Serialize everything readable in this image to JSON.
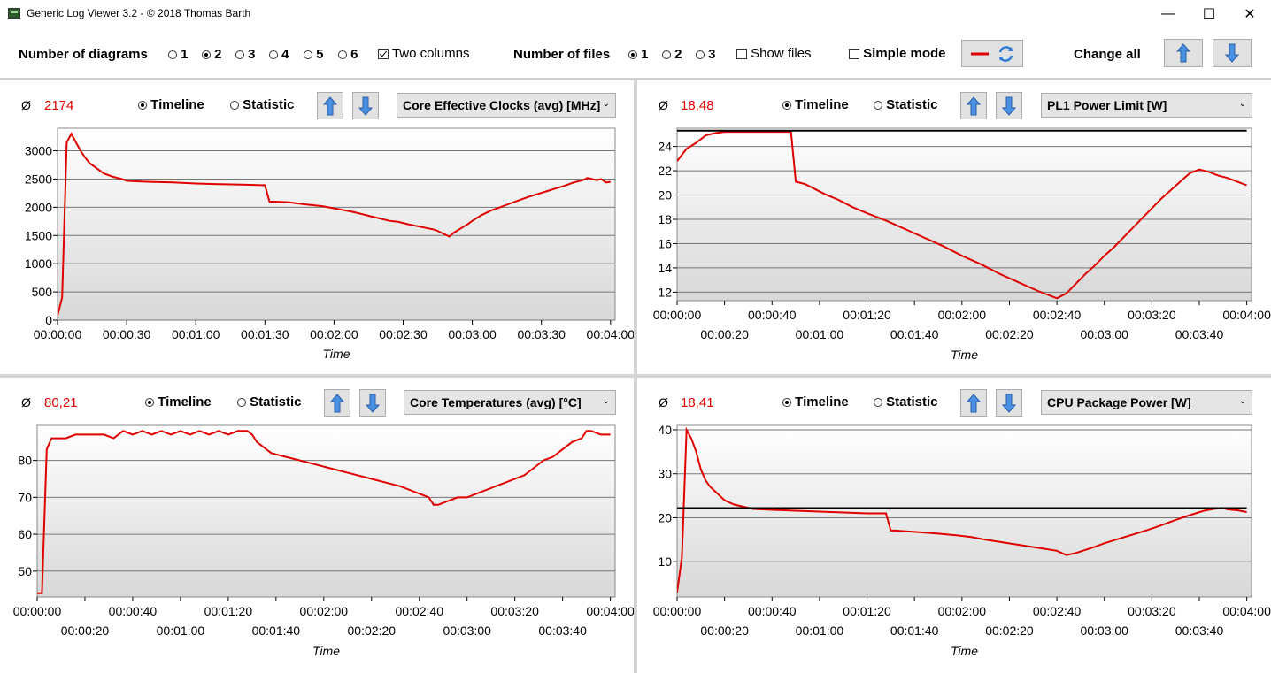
{
  "window": {
    "title": "Generic Log Viewer 3.2 - © 2018 Thomas Barth",
    "minimize_glyph": "—",
    "maximize_glyph": "☐",
    "close_glyph": "✕"
  },
  "toolbar": {
    "diagrams_label": "Number of diagrams",
    "diagram_options": [
      "1",
      "2",
      "3",
      "4",
      "5",
      "6"
    ],
    "diagram_selected": "2",
    "two_columns_label": "Two columns",
    "two_columns_checked": true,
    "files_label": "Number of files",
    "file_options": [
      "1",
      "2",
      "3"
    ],
    "file_selected": "1",
    "show_files_label": "Show files",
    "show_files_checked": false,
    "simple_mode_label": "Simple mode",
    "simple_mode_checked": false,
    "change_all_label": "Change all",
    "line_color": "#e00000",
    "refresh_icon": "refresh-icon",
    "up_icon": "arrow-up-icon",
    "down_icon": "arrow-down-icon"
  },
  "panels": [
    {
      "avg_symbol": "Ø",
      "avg_value": "2174",
      "timeline_label": "Timeline",
      "statistic_label": "Statistic",
      "mode": "Timeline",
      "sensor": "Core Effective Clocks (avg) [MHz]",
      "x_axis_title": "Time",
      "y_ticks": [
        "0",
        "500",
        "1000",
        "1500",
        "2000",
        "2500",
        "3000"
      ],
      "x_ticks_row1": [
        "00:00:00",
        "00:00:30",
        "00:01:00",
        "00:01:30",
        "00:02:00",
        "00:02:30",
        "00:03:00",
        "00:03:30",
        "00:04:00"
      ],
      "x_ticks_row2": []
    },
    {
      "avg_symbol": "Ø",
      "avg_value": "18,48",
      "timeline_label": "Timeline",
      "statistic_label": "Statistic",
      "mode": "Timeline",
      "sensor": "PL1 Power Limit [W]",
      "x_axis_title": "Time",
      "y_ticks": [
        "12",
        "14",
        "16",
        "18",
        "20",
        "22",
        "24"
      ],
      "x_ticks_row1": [
        "00:00:00",
        "00:00:40",
        "00:01:20",
        "00:02:00",
        "00:02:40",
        "00:03:20",
        "00:04:00"
      ],
      "x_ticks_row2": [
        "00:00:20",
        "00:01:00",
        "00:01:40",
        "00:02:20",
        "00:03:00",
        "00:03:40"
      ]
    },
    {
      "avg_symbol": "Ø",
      "avg_value": "80,21",
      "timeline_label": "Timeline",
      "statistic_label": "Statistic",
      "mode": "Timeline",
      "sensor": "Core Temperatures (avg) [°C]",
      "x_axis_title": "Time",
      "y_ticks": [
        "50",
        "60",
        "70",
        "80"
      ],
      "x_ticks_row1": [
        "00:00:00",
        "00:00:40",
        "00:01:20",
        "00:02:00",
        "00:02:40",
        "00:03:20",
        "00:04:00"
      ],
      "x_ticks_row2": [
        "00:00:20",
        "00:01:00",
        "00:01:40",
        "00:02:20",
        "00:03:00",
        "00:03:40"
      ]
    },
    {
      "avg_symbol": "Ø",
      "avg_value": "18,41",
      "timeline_label": "Timeline",
      "statistic_label": "Statistic",
      "mode": "Timeline",
      "sensor": "CPU Package Power [W]",
      "x_axis_title": "Time",
      "y_ticks": [
        "10",
        "20",
        "30",
        "40"
      ],
      "x_ticks_row1": [
        "00:00:00",
        "00:00:40",
        "00:01:20",
        "00:02:00",
        "00:02:40",
        "00:03:20",
        "00:04:00"
      ],
      "x_ticks_row2": [
        "00:00:20",
        "00:01:00",
        "00:01:40",
        "00:02:20",
        "00:03:00",
        "00:03:40"
      ]
    }
  ],
  "chart_data": [
    {
      "type": "line",
      "xlabel": "Time",
      "ylabel": "",
      "x_unit": "seconds",
      "xlim": [
        0,
        242
      ],
      "ylim": [
        0,
        3400
      ],
      "grid": true,
      "series": [
        {
          "color": "#e00000",
          "x": [
            0,
            2,
            4,
            6,
            8,
            10,
            12,
            14,
            16,
            18,
            20,
            22,
            24,
            26,
            28,
            30,
            34,
            40,
            50,
            60,
            70,
            80,
            90,
            92,
            94,
            100,
            108,
            115,
            120,
            124,
            128,
            132,
            136,
            140,
            144,
            148,
            152,
            158,
            164,
            168,
            170,
            172,
            174,
            176,
            178,
            180,
            184,
            188,
            192,
            196,
            200,
            204,
            208,
            212,
            216,
            220,
            224,
            228,
            230,
            232,
            234,
            236,
            238,
            240
          ],
          "values": [
            80,
            400,
            3150,
            3300,
            3150,
            3000,
            2880,
            2780,
            2720,
            2660,
            2600,
            2570,
            2540,
            2520,
            2500,
            2470,
            2460,
            2450,
            2440,
            2420,
            2410,
            2400,
            2390,
            2100,
            2100,
            2090,
            2050,
            2020,
            1980,
            1950,
            1920,
            1880,
            1840,
            1800,
            1760,
            1740,
            1700,
            1650,
            1600,
            1520,
            1480,
            1550,
            1600,
            1650,
            1700,
            1760,
            1860,
            1940,
            2000,
            2060,
            2120,
            2180,
            2230,
            2280,
            2330,
            2380,
            2440,
            2480,
            2520,
            2500,
            2480,
            2500,
            2440,
            2450
          ]
        }
      ]
    },
    {
      "type": "line",
      "xlabel": "Time",
      "ylabel": "",
      "x_unit": "seconds",
      "xlim": [
        0,
        242
      ],
      "ylim": [
        11.3,
        25.5
      ],
      "grid": true,
      "series": [
        {
          "name": "PL1 Power Limit",
          "color": "#e00000",
          "x": [
            0,
            4,
            8,
            12,
            16,
            20,
            30,
            40,
            48,
            50,
            54,
            58,
            62,
            68,
            74,
            80,
            88,
            96,
            104,
            112,
            120,
            128,
            136,
            144,
            152,
            160,
            164,
            168,
            172,
            176,
            180,
            184,
            188,
            192,
            196,
            200,
            204,
            208,
            212,
            216,
            220,
            224,
            228,
            232,
            236,
            240
          ],
          "values": [
            22.8,
            23.8,
            24.3,
            24.9,
            25.1,
            25.2,
            25.2,
            25.2,
            25.2,
            21.1,
            20.9,
            20.5,
            20.1,
            19.6,
            19.0,
            18.5,
            17.9,
            17.2,
            16.5,
            15.8,
            15.0,
            14.3,
            13.5,
            12.8,
            12.1,
            11.5,
            11.9,
            12.7,
            13.5,
            14.2,
            15.0,
            15.7,
            16.5,
            17.3,
            18.1,
            18.9,
            19.7,
            20.4,
            21.1,
            21.8,
            22.1,
            21.9,
            21.6,
            21.4,
            21.1,
            20.8
          ]
        },
        {
          "color": "#000000",
          "x": [
            0,
            240
          ],
          "values": [
            25.3,
            25.3
          ]
        }
      ]
    },
    {
      "type": "line",
      "xlabel": "Time",
      "ylabel": "",
      "x_unit": "seconds",
      "xlim": [
        0,
        242
      ],
      "ylim": [
        43,
        89.5
      ],
      "grid": true,
      "series": [
        {
          "color": "#e00000",
          "x": [
            0,
            2,
            4,
            6,
            8,
            12,
            16,
            20,
            24,
            28,
            32,
            36,
            40,
            44,
            48,
            52,
            56,
            60,
            64,
            68,
            72,
            76,
            80,
            84,
            88,
            90,
            92,
            94,
            98,
            104,
            110,
            116,
            122,
            128,
            134,
            140,
            146,
            152,
            156,
            160,
            164,
            166,
            168,
            172,
            176,
            180,
            184,
            188,
            192,
            196,
            200,
            204,
            208,
            212,
            216,
            220,
            224,
            228,
            230,
            232,
            236,
            240
          ],
          "values": [
            44,
            44,
            83,
            86,
            86,
            86,
            87,
            87,
            87,
            87,
            86,
            88,
            87,
            88,
            87,
            88,
            87,
            88,
            87,
            88,
            87,
            88,
            87,
            88,
            88,
            87,
            85,
            84,
            82,
            81,
            80,
            79,
            78,
            77,
            76,
            75,
            74,
            73,
            72,
            71,
            70,
            68,
            68,
            69,
            70,
            70,
            71,
            72,
            73,
            74,
            75,
            76,
            78,
            80,
            81,
            83,
            85,
            86,
            88,
            88,
            87,
            87
          ]
        }
      ]
    },
    {
      "type": "line",
      "xlabel": "Time",
      "ylabel": "",
      "x_unit": "seconds",
      "xlim": [
        0,
        242
      ],
      "ylim": [
        2,
        41
      ],
      "grid": true,
      "series": [
        {
          "color": "#e00000",
          "x": [
            0,
            2,
            4,
            6,
            8,
            10,
            12,
            14,
            16,
            18,
            20,
            24,
            28,
            32,
            40,
            50,
            60,
            70,
            80,
            88,
            90,
            92,
            100,
            110,
            118,
            124,
            130,
            136,
            142,
            148,
            154,
            160,
            162,
            164,
            168,
            172,
            176,
            180,
            186,
            192,
            198,
            204,
            210,
            216,
            222,
            226,
            228,
            230,
            232,
            236,
            240
          ],
          "values": [
            3,
            11,
            40,
            38,
            35,
            31,
            28.5,
            27,
            26,
            25,
            24,
            23,
            22.5,
            22,
            21.8,
            21.6,
            21.4,
            21.2,
            21,
            21,
            17.1,
            17.1,
            16.8,
            16.4,
            16,
            15.6,
            15,
            14.5,
            14,
            13.5,
            13,
            12.5,
            12,
            11.5,
            12,
            12.7,
            13.4,
            14.2,
            15.2,
            16.2,
            17.2,
            18.3,
            19.5,
            20.6,
            21.6,
            22,
            22.1,
            22.2,
            21.9,
            21.7,
            21.3
          ]
        },
        {
          "color": "#000000",
          "x": [
            0,
            240
          ],
          "values": [
            22.2,
            22.2
          ]
        }
      ]
    }
  ]
}
